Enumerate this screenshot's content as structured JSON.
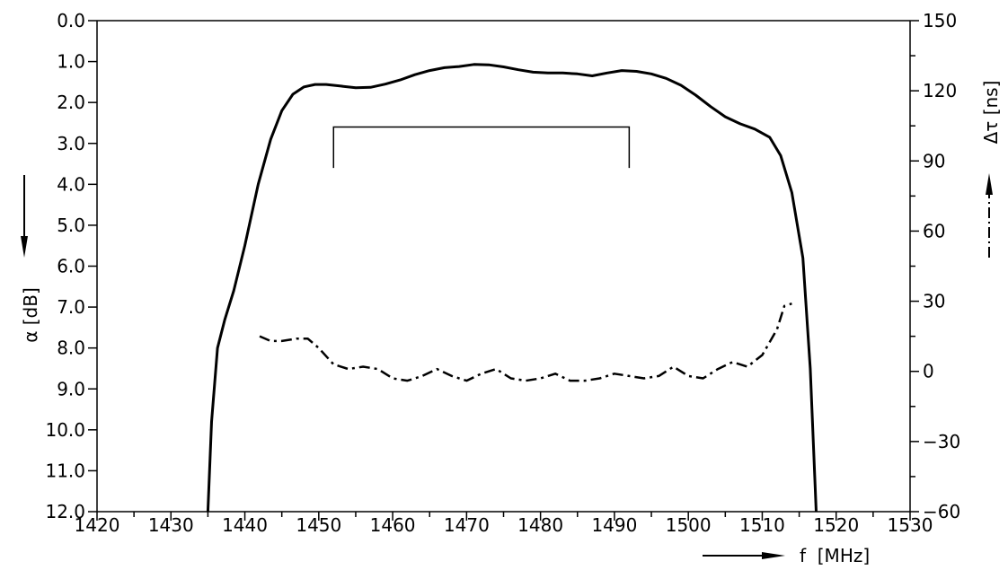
{
  "chart_data": {
    "type": "line",
    "xlabel": "f  [MHz]",
    "ylabel_left": "α  [dB]",
    "ylabel_right": "Δτ  [ns]",
    "xlim": [
      1420,
      1530
    ],
    "ylim_left": [
      0.0,
      12.0
    ],
    "ylim_left_inverted": true,
    "ylim_right": [
      -60,
      150
    ],
    "x_ticks": [
      1420,
      1430,
      1440,
      1450,
      1460,
      1470,
      1480,
      1490,
      1500,
      1510,
      1520,
      1530
    ],
    "x_tick_labels": [
      "1420",
      "1430",
      "1440",
      "1450",
      "1460",
      "1470",
      "1480",
      "1490",
      "1500",
      "1510",
      "1520",
      "1530"
    ],
    "left_ticks": [
      0,
      1,
      2,
      3,
      4,
      5,
      6,
      7,
      8,
      9,
      10,
      11,
      12
    ],
    "left_tick_labels": [
      "0.0",
      "1.0",
      "2.0",
      "3.0",
      "4.0",
      "5.0",
      "6.0",
      "7.0",
      "8.0",
      "9.0",
      "10.0",
      "11.0",
      "12.0"
    ],
    "right_ticks": [
      150,
      120,
      90,
      60,
      30,
      0,
      -30,
      -60
    ],
    "right_tick_labels": [
      "150",
      "120",
      "90",
      "60",
      "30",
      "0",
      "−30",
      "−60"
    ],
    "grid": false,
    "series": [
      {
        "axis": "left",
        "line_style": "solid",
        "x": [
          1435.0,
          1435.5,
          1436.3,
          1437.3,
          1438.5,
          1440.0,
          1441.8,
          1443.5,
          1445.0,
          1446.5,
          1448.0,
          1449.5,
          1451.0,
          1453.0,
          1455.0,
          1457.0,
          1459.0,
          1461.0,
          1463.0,
          1465.0,
          1467.0,
          1469.0,
          1471.0,
          1473.0,
          1475.0,
          1477.0,
          1479.0,
          1481.0,
          1483.0,
          1485.0,
          1487.0,
          1489.0,
          1491.0,
          1493.0,
          1495.0,
          1497.0,
          1499.0,
          1501.0,
          1503.0,
          1505.0,
          1507.0,
          1509.0,
          1511.0,
          1512.5,
          1514.0,
          1515.5,
          1516.5,
          1517.3
        ],
        "y": [
          12.0,
          9.8,
          8.0,
          7.3,
          6.6,
          5.5,
          4.0,
          2.9,
          2.2,
          1.8,
          1.62,
          1.56,
          1.56,
          1.6,
          1.64,
          1.63,
          1.55,
          1.45,
          1.32,
          1.22,
          1.15,
          1.12,
          1.07,
          1.08,
          1.13,
          1.2,
          1.26,
          1.28,
          1.28,
          1.3,
          1.35,
          1.28,
          1.22,
          1.24,
          1.3,
          1.41,
          1.58,
          1.82,
          2.1,
          2.35,
          2.52,
          2.65,
          2.85,
          3.3,
          4.2,
          5.8,
          8.5,
          12.0
        ]
      },
      {
        "axis": "right",
        "line_style": "dash-dot",
        "x": [
          1442,
          1443.5,
          1445,
          1447,
          1448.5,
          1450,
          1452,
          1454,
          1456,
          1458,
          1460,
          1462,
          1464,
          1466,
          1468,
          1470,
          1472,
          1474,
          1476,
          1478,
          1480,
          1482,
          1484,
          1486,
          1488,
          1490,
          1492,
          1494,
          1496,
          1498,
          1500,
          1502,
          1504,
          1506,
          1508,
          1510,
          1512,
          1513,
          1514
        ],
        "y": [
          15,
          13,
          13,
          14,
          14,
          10,
          3,
          1,
          2,
          1,
          -3,
          -4,
          -2,
          1,
          -2,
          -4,
          -1,
          1,
          -3,
          -4,
          -3,
          -1,
          -4,
          -4,
          -3,
          -1,
          -2,
          -3,
          -2,
          2,
          -2,
          -3,
          1,
          4,
          2,
          7,
          18,
          28,
          29
        ]
      }
    ],
    "annotations": [
      {
        "type": "bracket",
        "axis": "left",
        "x_start": 1452,
        "x_end": 1492,
        "y_top": 2.6,
        "y_bottom": 3.6
      }
    ]
  }
}
